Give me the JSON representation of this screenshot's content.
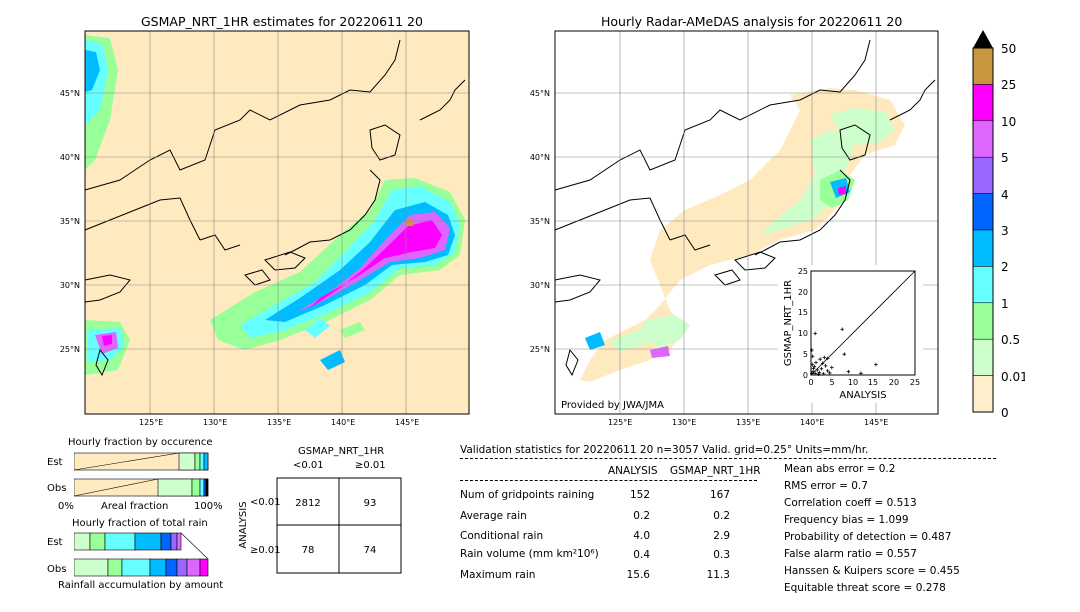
{
  "left_map": {
    "title": "GSMAP_NRT_1HR estimates for 20220611 20",
    "lat_labels": [
      "45°N",
      "40°N",
      "35°N",
      "30°N",
      "25°N"
    ],
    "lon_labels": [
      "125°E",
      "130°E",
      "135°E",
      "140°E",
      "145°E"
    ]
  },
  "right_map": {
    "title": "Hourly Radar-AMeDAS analysis for 20220611 20",
    "lat_labels": [
      "45°N",
      "40°N",
      "35°N",
      "30°N",
      "25°N"
    ],
    "lon_labels": [
      "125°E",
      "130°E",
      "135°E",
      "140°E",
      "145°E"
    ],
    "credit": "Provided by JWA/JMA"
  },
  "colorbar": {
    "labels": [
      "50",
      "25",
      "10",
      "5",
      "4",
      "3",
      "2",
      "1",
      "0.5",
      "0.01",
      "0"
    ],
    "colors": [
      "#c8963c",
      "#ff00ff",
      "#dd66ff",
      "#9966ff",
      "#0066ff",
      "#00bbff",
      "#66ffff",
      "#99ff99",
      "#ccffcc",
      "#ffeecc"
    ]
  },
  "chart_data": [
    {
      "type": "scatter",
      "xlabel": "ANALYSIS",
      "ylabel": "GSMAP_NRT_1HR",
      "xlim": [
        0,
        25
      ],
      "ylim": [
        0,
        25
      ],
      "x_ticks": [
        "0",
        "5",
        "10",
        "15",
        "20",
        "25"
      ],
      "y_ticks": [
        "0",
        "5",
        "10",
        "15",
        "20",
        "25"
      ],
      "points": [
        [
          0.2,
          0.3
        ],
        [
          0.5,
          0.8
        ],
        [
          1,
          0.4
        ],
        [
          1.5,
          1.2
        ],
        [
          2,
          0.6
        ],
        [
          0.8,
          2
        ],
        [
          2.5,
          1.5
        ],
        [
          3,
          0.3
        ],
        [
          1.2,
          3
        ],
        [
          3.5,
          2.2
        ],
        [
          0.4,
          4.5
        ],
        [
          2.2,
          3.8
        ],
        [
          4,
          1
        ],
        [
          4.5,
          0.5
        ],
        [
          0.6,
          1.6
        ],
        [
          1.8,
          0.2
        ],
        [
          0.3,
          2.5
        ],
        [
          2.8,
          2.8
        ],
        [
          5,
          1.8
        ],
        [
          1,
          10
        ],
        [
          4,
          4
        ],
        [
          8,
          5
        ],
        [
          7.5,
          11
        ],
        [
          9,
          0.8
        ],
        [
          15.6,
          2.5
        ],
        [
          12,
          0.4
        ],
        [
          0.2,
          6
        ],
        [
          3.2,
          4.2
        ]
      ]
    },
    {
      "type": "bar",
      "title": "Hourly fraction by occurence",
      "categories": [
        "Est",
        "Obs"
      ],
      "x_ticks": [
        "0%",
        "100%"
      ],
      "xlabel": "Areal fraction"
    },
    {
      "type": "bar",
      "title": "Hourly fraction of total rain",
      "categories": [
        "Est",
        "Obs"
      ],
      "xlabel": "Rainfall accumulation by amount"
    }
  ],
  "contingency": {
    "title": "GSMAP_NRT_1HR",
    "col_labels": [
      "<0.01",
      "≥0.01"
    ],
    "row_title": "ANALYSIS",
    "row_labels": [
      "<0.01",
      "≥0.01"
    ],
    "cells": [
      [
        "2812",
        "93"
      ],
      [
        "78",
        "74"
      ]
    ]
  },
  "validation": {
    "header": "Validation statistics for 20220611 20  n=3057 Valid. grid=0.25° Units=mm/hr.",
    "col_analysis": "ANALYSIS",
    "col_gsmap": "GSMAP_NRT_1HR",
    "rows": [
      {
        "label": "Num of gridpoints raining",
        "analysis": "152",
        "gsmap": "167"
      },
      {
        "label": "Average rain",
        "analysis": "0.2",
        "gsmap": "0.2"
      },
      {
        "label": "Conditional rain",
        "analysis": "4.0",
        "gsmap": "2.9"
      },
      {
        "label": "Rain volume (mm km²10⁶)",
        "analysis": "0.4",
        "gsmap": "0.3"
      },
      {
        "label": "Maximum rain",
        "analysis": "15.6",
        "gsmap": "11.3"
      }
    ],
    "scores": [
      "Mean abs error =    0.2",
      "RMS error =    0.7",
      "Correlation coeff =  0.513",
      "Frequency bias =  1.099",
      "Probability of detection =  0.487",
      "False alarm ratio =  0.557",
      "Hanssen & Kuipers score =  0.455",
      "Equitable threat score =  0.278"
    ]
  }
}
